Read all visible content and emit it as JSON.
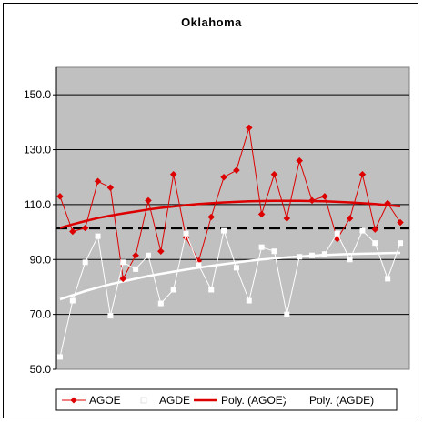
{
  "chart_data": {
    "type": "line",
    "title": "Oklahoma",
    "xlabel": "",
    "ylabel": "",
    "ylim": [
      50,
      160
    ],
    "yticks": [
      "50.0",
      "70.0",
      "90.0",
      "110.0",
      "130.0",
      "150.0"
    ],
    "grid": "horizontal",
    "reference_line": 101.5,
    "legend_position": "bottom",
    "plot_background": "#c0c0c0",
    "series": [
      {
        "name": "AGOE",
        "color": "#dd0000",
        "marker": "diamond",
        "values": [
          113,
          100.2,
          101.5,
          118.5,
          116.2,
          83,
          91.5,
          111.5,
          93,
          121,
          98,
          89.5,
          105.5,
          120,
          122.5,
          138,
          106.5,
          121,
          105,
          126,
          111.5,
          113,
          97.5,
          105,
          121,
          101,
          110.5,
          103.5
        ]
      },
      {
        "name": "AGDE",
        "color": "#ffffff",
        "marker": "square",
        "values": [
          54.5,
          75,
          89,
          98.5,
          69.5,
          89,
          86.5,
          91.5,
          74,
          79,
          99.5,
          88,
          79,
          100.5,
          87,
          75,
          94.5,
          93,
          70,
          91,
          91.5,
          92,
          99.5,
          90,
          100.5,
          96,
          83,
          96
        ]
      },
      {
        "name": "Poly. (AGOE)",
        "color": "#dd0000",
        "marker": "none",
        "values": [
          101.5,
          102.8,
          104,
          105.1,
          106,
          106.8,
          107.5,
          108.2,
          108.8,
          109.3,
          109.8,
          110.2,
          110.5,
          110.8,
          111,
          111.2,
          111.3,
          111.4,
          111.4,
          111.4,
          111.3,
          111.2,
          111,
          110.8,
          110.5,
          110.2,
          109.8,
          109.4
        ]
      },
      {
        "name": "Poly. (AGDE)",
        "color": "#ffffff",
        "marker": "none",
        "values": [
          75.5,
          77,
          78.5,
          79.8,
          81,
          82,
          83,
          84,
          84.8,
          85.6,
          86.3,
          87,
          87.7,
          88.3,
          88.9,
          89.5,
          90,
          90.4,
          90.8,
          91.1,
          91.4,
          91.6,
          91.8,
          92,
          92.1,
          92.2,
          92.3,
          92.4
        ]
      }
    ]
  }
}
